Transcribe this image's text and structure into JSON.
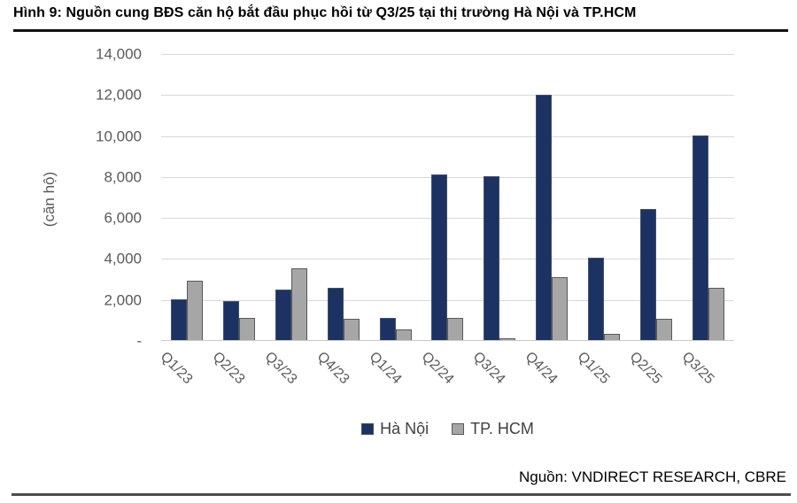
{
  "figure": {
    "title": "Hình 9: Nguồn cung BĐS căn hộ bắt đầu phục hồi từ Q3/25 tại thị trường Hà Nội và TP.HCM",
    "source": "Nguồn: VNDIRECT RESEARCH, CBRE"
  },
  "chart_data": {
    "type": "bar",
    "title": "Hình 9: Nguồn cung BĐS căn hộ bắt đầu phục hồi từ Q3/25 tại thị trường Hà Nội và TP.HCM",
    "xlabel": "",
    "ylabel": "(căn hộ)",
    "categories": [
      "Q1/23",
      "Q2/23",
      "Q3/23",
      "Q4/23",
      "Q1/24",
      "Q2/24",
      "Q3/24",
      "Q4/24",
      "Q1/25",
      "Q2/25",
      "Q3/25"
    ],
    "series": [
      {
        "name": "Hà Nội",
        "color": "#1c3263",
        "border_color": "#42506b",
        "values": [
          2000,
          1900,
          2450,
          2550,
          1100,
          8100,
          8000,
          11950,
          4000,
          6400,
          10000
        ]
      },
      {
        "name": "TP. HCM",
        "color": "#a6a6a6",
        "border_color": "#595959",
        "values": [
          2900,
          1100,
          3500,
          1050,
          500,
          1100,
          100,
          3050,
          300,
          1050,
          2550
        ]
      }
    ],
    "ylim": [
      0,
      14000
    ],
    "ytick_step": 2000,
    "ytick_labels_bottom_to_top": [
      "-",
      "2,000",
      "4,000",
      "6,000",
      "8,000",
      "10,000",
      "12,000",
      "14,000"
    ],
    "grid": true,
    "legend_position": "bottom",
    "bar_orientation": "vertical"
  }
}
